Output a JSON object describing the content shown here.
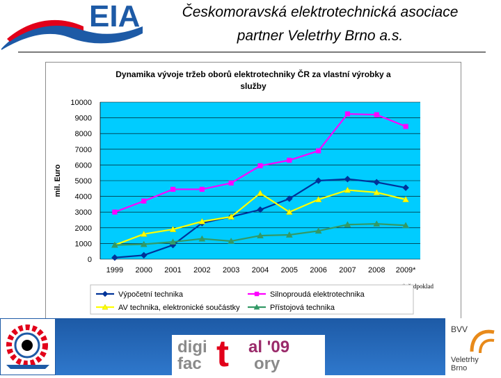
{
  "header": {
    "line1": "Českomoravská elektrotechnická asociace",
    "line2": "partner Veletrhy Brno a.s."
  },
  "logos": {
    "eia_text": "EIA",
    "digital_factory_text_1": "digi",
    "digital_factory_text_2": "al '09",
    "digital_factory_text_3": "fac",
    "digital_factory_text_4": "ory",
    "digital_factory_big_t": "t",
    "bvv_text": "BVV",
    "bvv_sub1": "Veletrhy",
    "bvv_sub2": "Brno"
  },
  "colors": {
    "plot_bg": "#00ccff",
    "accent_blue": "#1d5aa6",
    "eia_red": "#e2001a",
    "bvv_orange": "#e88a1a"
  },
  "chart_data": {
    "type": "line",
    "title": "Dynamika vývoje tržeb oborů elektrotechniky ČR za vlastní výrobky a služby",
    "title_lines": [
      "Dynamika vývoje tržeb oborů elektrotechniky ČR za vlastní výrobky a",
      "služby"
    ],
    "xlabel": "",
    "ylabel": "mil. Euro",
    "ylim": [
      0,
      10000
    ],
    "yticks": [
      0,
      1000,
      2000,
      3000,
      4000,
      5000,
      6000,
      7000,
      8000,
      9000,
      10000
    ],
    "categories": [
      "1999",
      "2000",
      "2001",
      "2002",
      "2003",
      "2004",
      "2005",
      "2006",
      "2007",
      "2008",
      "2009*"
    ],
    "note": "*předpoklad",
    "grid": "horizontal",
    "legend_placement": "bottom",
    "series": [
      {
        "name": "Výpočetní technika",
        "color": "#003399",
        "marker": "diamond",
        "values": [
          100,
          250,
          900,
          2300,
          2700,
          3150,
          3850,
          5000,
          5100,
          4900,
          4550
        ]
      },
      {
        "name": "Silnoproudá elektrotechnika",
        "color": "#ff00ff",
        "marker": "square",
        "values": [
          3000,
          3700,
          4450,
          4450,
          4850,
          5950,
          6300,
          6900,
          9250,
          9200,
          8450
        ]
      },
      {
        "name": "AV technika, elektronické součástky",
        "color": "#ffff00",
        "marker": "triangle",
        "values": [
          900,
          1600,
          1900,
          2400,
          2700,
          4200,
          3000,
          3800,
          4400,
          4250,
          3800
        ]
      },
      {
        "name": "Přístojová technika",
        "color": "#339966",
        "marker": "triangle",
        "values": [
          900,
          950,
          1100,
          1300,
          1150,
          1500,
          1550,
          1800,
          2200,
          2250,
          2150
        ]
      }
    ]
  }
}
